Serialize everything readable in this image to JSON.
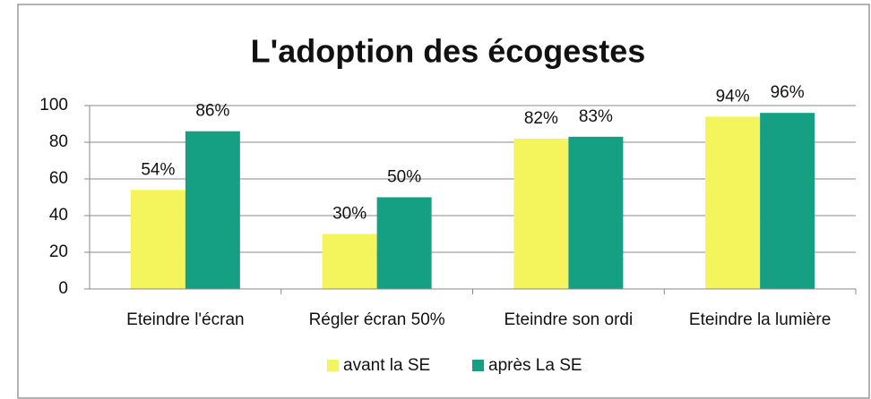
{
  "chart_data": {
    "type": "bar",
    "title": "L'adoption des écogestes",
    "categories": [
      "Eteindre l'écran",
      "Régler écran 50%",
      "Eteindre son ordi",
      "Eteindre la lumière"
    ],
    "series": [
      {
        "name": "avant la SE",
        "color": "#f4f55c",
        "values": [
          54,
          30,
          82,
          94
        ],
        "value_labels": [
          "54%",
          "30%",
          "82%",
          "94%"
        ]
      },
      {
        "name": "après La SE",
        "color": "#16a083",
        "values": [
          86,
          50,
          83,
          96
        ],
        "value_labels": [
          "86%",
          "50%",
          "83%",
          "96%"
        ]
      }
    ],
    "ylim": [
      0,
      100
    ],
    "yticks": [
      0,
      20,
      40,
      60,
      80,
      100
    ],
    "grid": true,
    "legend": "bottom"
  }
}
